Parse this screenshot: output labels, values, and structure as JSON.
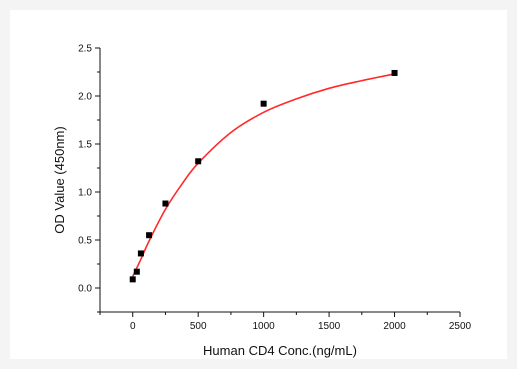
{
  "chart_data": {
    "type": "scatter",
    "title": "",
    "xlabel": "Human CD4 Conc.(ng/mL)",
    "ylabel": "OD Value (450nm)",
    "xlim": [
      -250,
      2500
    ],
    "ylim": [
      -0.25,
      2.5
    ],
    "xticks": [
      0,
      500,
      1000,
      1500,
      2000,
      2500
    ],
    "yticks": [
      0.0,
      0.5,
      1.0,
      1.5,
      2.0,
      2.5
    ],
    "xtick_labels": [
      "0",
      "500",
      "1000",
      "1500",
      "2000",
      "2500"
    ],
    "ytick_labels": [
      "0.0",
      "0.5",
      "1.0",
      "1.5",
      "2.0",
      "2.5"
    ],
    "grid": false,
    "legend": "none",
    "series": [
      {
        "kind": "points",
        "marker": "square",
        "color": "#000000",
        "x": [
          0,
          31.25,
          62.5,
          125,
          250,
          500,
          1000,
          2000
        ],
        "y": [
          0.09,
          0.17,
          0.36,
          0.55,
          0.88,
          1.32,
          1.92,
          2.24
        ]
      },
      {
        "kind": "fit-curve",
        "color": "#ff2a2a",
        "x": [
          0,
          31.25,
          62.5,
          125,
          250,
          375,
          500,
          750,
          1000,
          1250,
          1500,
          1750,
          2000
        ],
        "y": [
          0.12,
          0.21,
          0.3,
          0.49,
          0.82,
          1.08,
          1.3,
          1.62,
          1.83,
          1.97,
          2.08,
          2.16,
          2.23
        ]
      }
    ]
  }
}
